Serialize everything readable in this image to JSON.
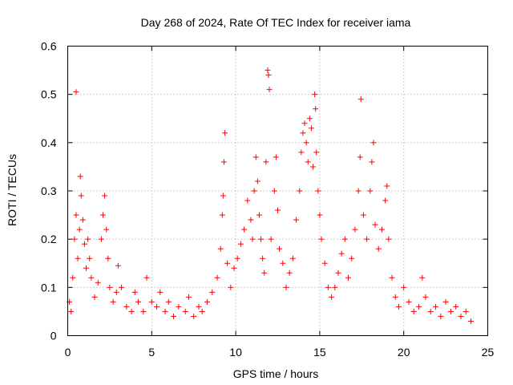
{
  "chart_data": {
    "type": "scatter",
    "title": "Day 268 of 2024, Rate Of TEC Index for receiver iama",
    "xlabel": "GPS time / hours",
    "ylabel": "ROTI / TECUs",
    "xlim": [
      0,
      25
    ],
    "ylim": [
      0,
      0.6
    ],
    "xticks": [
      0,
      5,
      10,
      15,
      20,
      25
    ],
    "yticks": [
      0,
      0.1,
      0.2,
      0.3,
      0.4,
      0.5,
      0.6
    ],
    "grid": true,
    "marker": "+",
    "color": "#ff0000",
    "series": [
      {
        "points": [
          [
            0.1,
            0.07
          ],
          [
            0.2,
            0.05
          ],
          [
            0.3,
            0.12
          ],
          [
            0.4,
            0.2
          ],
          [
            0.5,
            0.25
          ],
          [
            0.5,
            0.505
          ],
          [
            0.6,
            0.16
          ],
          [
            0.7,
            0.22
          ],
          [
            0.75,
            0.33
          ],
          [
            0.8,
            0.29
          ],
          [
            0.9,
            0.24
          ],
          [
            1.0,
            0.19
          ],
          [
            1.1,
            0.14
          ],
          [
            1.2,
            0.2
          ],
          [
            1.3,
            0.16
          ],
          [
            1.4,
            0.12
          ],
          [
            1.6,
            0.08
          ],
          [
            1.8,
            0.11
          ],
          [
            2.0,
            0.2
          ],
          [
            2.1,
            0.25
          ],
          [
            2.2,
            0.29
          ],
          [
            2.3,
            0.22
          ],
          [
            2.4,
            0.16
          ],
          [
            2.5,
            0.1
          ],
          [
            2.7,
            0.07
          ],
          [
            2.9,
            0.09
          ],
          [
            3.0,
            0.145
          ],
          [
            3.2,
            0.1
          ],
          [
            3.5,
            0.06
          ],
          [
            3.8,
            0.05
          ],
          [
            4.0,
            0.09
          ],
          [
            4.2,
            0.07
          ],
          [
            4.5,
            0.05
          ],
          [
            4.7,
            0.12
          ],
          [
            5.0,
            0.07
          ],
          [
            5.3,
            0.06
          ],
          [
            5.5,
            0.09
          ],
          [
            5.8,
            0.05
          ],
          [
            6.0,
            0.07
          ],
          [
            6.3,
            0.04
          ],
          [
            6.6,
            0.06
          ],
          [
            7.0,
            0.05
          ],
          [
            7.2,
            0.08
          ],
          [
            7.5,
            0.04
          ],
          [
            7.8,
            0.06
          ],
          [
            8.0,
            0.05
          ],
          [
            8.3,
            0.07
          ],
          [
            8.6,
            0.09
          ],
          [
            8.9,
            0.12
          ],
          [
            9.1,
            0.18
          ],
          [
            9.2,
            0.25
          ],
          [
            9.25,
            0.29
          ],
          [
            9.3,
            0.36
          ],
          [
            9.35,
            0.42
          ],
          [
            9.5,
            0.15
          ],
          [
            9.7,
            0.1
          ],
          [
            9.9,
            0.14
          ],
          [
            10.1,
            0.16
          ],
          [
            10.3,
            0.19
          ],
          [
            10.5,
            0.22
          ],
          [
            10.7,
            0.28
          ],
          [
            10.9,
            0.24
          ],
          [
            11.0,
            0.2
          ],
          [
            11.1,
            0.3
          ],
          [
            11.2,
            0.37
          ],
          [
            11.3,
            0.32
          ],
          [
            11.4,
            0.25
          ],
          [
            11.5,
            0.2
          ],
          [
            11.6,
            0.16
          ],
          [
            11.7,
            0.13
          ],
          [
            11.8,
            0.36
          ],
          [
            11.9,
            0.55
          ],
          [
            11.95,
            0.54
          ],
          [
            12.0,
            0.51
          ],
          [
            12.1,
            0.2
          ],
          [
            12.3,
            0.3
          ],
          [
            12.4,
            0.37
          ],
          [
            12.5,
            0.26
          ],
          [
            12.6,
            0.18
          ],
          [
            12.8,
            0.15
          ],
          [
            13.0,
            0.1
          ],
          [
            13.2,
            0.13
          ],
          [
            13.4,
            0.16
          ],
          [
            13.6,
            0.24
          ],
          [
            13.8,
            0.3
          ],
          [
            13.9,
            0.38
          ],
          [
            14.0,
            0.42
          ],
          [
            14.1,
            0.44
          ],
          [
            14.2,
            0.4
          ],
          [
            14.3,
            0.36
          ],
          [
            14.4,
            0.45
          ],
          [
            14.5,
            0.43
          ],
          [
            14.6,
            0.35
          ],
          [
            14.7,
            0.5
          ],
          [
            14.75,
            0.47
          ],
          [
            14.8,
            0.38
          ],
          [
            14.9,
            0.3
          ],
          [
            15.0,
            0.25
          ],
          [
            15.1,
            0.2
          ],
          [
            15.3,
            0.15
          ],
          [
            15.5,
            0.1
          ],
          [
            15.7,
            0.08
          ],
          [
            15.9,
            0.1
          ],
          [
            16.1,
            0.13
          ],
          [
            16.3,
            0.17
          ],
          [
            16.5,
            0.2
          ],
          [
            16.7,
            0.12
          ],
          [
            16.9,
            0.16
          ],
          [
            17.1,
            0.22
          ],
          [
            17.3,
            0.3
          ],
          [
            17.4,
            0.37
          ],
          [
            17.45,
            0.49
          ],
          [
            17.6,
            0.25
          ],
          [
            17.8,
            0.2
          ],
          [
            18.0,
            0.3
          ],
          [
            18.1,
            0.36
          ],
          [
            18.2,
            0.4
          ],
          [
            18.3,
            0.23
          ],
          [
            18.5,
            0.18
          ],
          [
            18.7,
            0.22
          ],
          [
            18.9,
            0.28
          ],
          [
            19.0,
            0.31
          ],
          [
            19.1,
            0.2
          ],
          [
            19.3,
            0.12
          ],
          [
            19.5,
            0.08
          ],
          [
            19.7,
            0.06
          ],
          [
            20.0,
            0.1
          ],
          [
            20.3,
            0.07
          ],
          [
            20.6,
            0.05
          ],
          [
            20.9,
            0.06
          ],
          [
            21.1,
            0.12
          ],
          [
            21.3,
            0.08
          ],
          [
            21.6,
            0.05
          ],
          [
            21.9,
            0.06
          ],
          [
            22.2,
            0.04
          ],
          [
            22.5,
            0.07
          ],
          [
            22.8,
            0.05
          ],
          [
            23.1,
            0.06
          ],
          [
            23.4,
            0.04
          ],
          [
            23.7,
            0.05
          ],
          [
            24.0,
            0.03
          ]
        ]
      }
    ]
  }
}
